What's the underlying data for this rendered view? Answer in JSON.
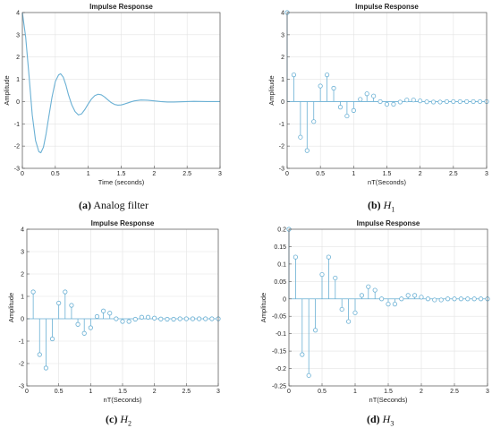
{
  "chart_data": [
    {
      "type": "line",
      "title": "Impulse Response",
      "xlabel": "Time (seconds)",
      "ylabel": "Amplitude",
      "xlim": [
        0,
        3
      ],
      "ylim": [
        -3,
        4
      ],
      "xticks": [
        "0",
        "0.5",
        "1",
        "1.5",
        "2",
        "2.5",
        "3"
      ],
      "yticks": [
        "-3",
        "-2",
        "-1",
        "0",
        "1",
        "2",
        "3",
        "4"
      ],
      "grid": true,
      "color": "#6ab0d4",
      "x": [
        0,
        0.05,
        0.1,
        0.15,
        0.2,
        0.25,
        0.28,
        0.32,
        0.36,
        0.4,
        0.45,
        0.5,
        0.55,
        0.58,
        0.62,
        0.66,
        0.7,
        0.75,
        0.8,
        0.85,
        0.9,
        0.95,
        1.0,
        1.05,
        1.1,
        1.15,
        1.2,
        1.25,
        1.3,
        1.35,
        1.4,
        1.45,
        1.5,
        1.55,
        1.6,
        1.65,
        1.7,
        1.8,
        1.9,
        2.0,
        2.1,
        2.2,
        2.3,
        2.4,
        2.5,
        2.6,
        2.8,
        3.0
      ],
      "y": [
        4.0,
        2.9,
        1.2,
        -0.6,
        -1.75,
        -2.25,
        -2.3,
        -2.05,
        -1.45,
        -0.7,
        0.2,
        0.9,
        1.2,
        1.25,
        1.1,
        0.75,
        0.3,
        -0.15,
        -0.45,
        -0.6,
        -0.55,
        -0.35,
        -0.1,
        0.12,
        0.27,
        0.33,
        0.3,
        0.2,
        0.07,
        -0.05,
        -0.13,
        -0.16,
        -0.15,
        -0.11,
        -0.06,
        -0.01,
        0.03,
        0.07,
        0.06,
        0.03,
        0.0,
        -0.02,
        -0.02,
        -0.01,
        0.0,
        0.01,
        0.0,
        0.0
      ]
    },
    {
      "type": "scatter",
      "title": "Impulse Response",
      "xlabel": "nT(Seconds)",
      "ylabel": "Amplitude",
      "xlim": [
        0,
        3
      ],
      "ylim": [
        -3,
        4
      ],
      "xticks": [
        "0",
        "0.5",
        "1",
        "1.5",
        "2",
        "2.5",
        "3"
      ],
      "yticks": [
        "-3",
        "-2",
        "-1",
        "0",
        "1",
        "2",
        "3",
        "4"
      ],
      "grid": true,
      "marker": "stem",
      "color": "#6ab0d4",
      "x": [
        0,
        0.1,
        0.2,
        0.3,
        0.4,
        0.5,
        0.6,
        0.7,
        0.8,
        0.9,
        1.0,
        1.1,
        1.2,
        1.3,
        1.4,
        1.5,
        1.6,
        1.7,
        1.8,
        1.9,
        2.0,
        2.1,
        2.2,
        2.3,
        2.4,
        2.5,
        2.6,
        2.7,
        2.8,
        2.9,
        3.0
      ],
      "y": [
        4.0,
        1.2,
        -1.6,
        -2.2,
        -0.9,
        0.7,
        1.2,
        0.6,
        -0.25,
        -0.65,
        -0.4,
        0.1,
        0.35,
        0.25,
        0.0,
        -0.12,
        -0.12,
        -0.02,
        0.07,
        0.07,
        0.03,
        -0.01,
        -0.02,
        -0.02,
        0.0,
        0.0,
        0.0,
        0.0,
        0.0,
        0.0,
        0.0
      ]
    },
    {
      "type": "scatter",
      "title": "Impulse Response",
      "xlabel": "nT(Seconds)",
      "ylabel": "Amplitude",
      "xlim": [
        0,
        3
      ],
      "ylim": [
        -3,
        4
      ],
      "xticks": [
        "0",
        "0.5",
        "1",
        "1.5",
        "2",
        "2.5",
        "3"
      ],
      "yticks": [
        "-3",
        "-2",
        "-1",
        "0",
        "1",
        "2",
        "3",
        "4"
      ],
      "grid": true,
      "marker": "stem",
      "color": "#6ab0d4",
      "x": [
        0.1,
        0.2,
        0.3,
        0.4,
        0.5,
        0.6,
        0.7,
        0.8,
        0.9,
        1.0,
        1.1,
        1.2,
        1.3,
        1.4,
        1.5,
        1.6,
        1.7,
        1.8,
        1.9,
        2.0,
        2.1,
        2.2,
        2.3,
        2.4,
        2.5,
        2.6,
        2.7,
        2.8,
        2.9,
        3.0
      ],
      "y": [
        1.2,
        -1.6,
        -2.2,
        -0.9,
        0.7,
        1.2,
        0.6,
        -0.25,
        -0.65,
        -0.4,
        0.1,
        0.35,
        0.25,
        0.0,
        -0.12,
        -0.12,
        -0.02,
        0.07,
        0.07,
        0.03,
        -0.01,
        -0.02,
        -0.02,
        0.0,
        0.0,
        0.0,
        0.0,
        0.0,
        0.0,
        0.0
      ]
    },
    {
      "type": "scatter",
      "title": "Impulse Response",
      "xlabel": "nT(Seconds)",
      "ylabel": "Amplitude",
      "xlim": [
        0,
        3
      ],
      "ylim": [
        -0.25,
        0.2
      ],
      "xticks": [
        "0",
        "0.5",
        "1",
        "1.5",
        "2",
        "2.5",
        "3"
      ],
      "yticks": [
        "-0.25",
        "-0.2",
        "-0.15",
        "-0.1",
        "-0.05",
        "0",
        "0.05",
        "0.1",
        "0.15",
        "0.2"
      ],
      "grid": true,
      "marker": "stem",
      "color": "#6ab0d4",
      "x": [
        0,
        0.1,
        0.2,
        0.3,
        0.4,
        0.5,
        0.6,
        0.7,
        0.8,
        0.9,
        1.0,
        1.1,
        1.2,
        1.3,
        1.4,
        1.5,
        1.6,
        1.7,
        1.8,
        1.9,
        2.0,
        2.1,
        2.2,
        2.3,
        2.4,
        2.5,
        2.6,
        2.7,
        2.8,
        2.9,
        3.0
      ],
      "y": [
        0.2,
        0.12,
        -0.16,
        -0.22,
        -0.09,
        0.07,
        0.12,
        0.06,
        -0.03,
        -0.065,
        -0.04,
        0.01,
        0.035,
        0.025,
        0.0,
        -0.015,
        -0.015,
        0.0,
        0.01,
        0.01,
        0.005,
        0.0,
        -0.003,
        -0.003,
        0.0,
        0.0,
        0.0,
        0.0,
        0.0,
        0.0,
        0.0
      ]
    }
  ],
  "captions": [
    {
      "tag": "(a)",
      "text": "Analog filter"
    },
    {
      "tag": "(b)",
      "sym": "H",
      "sub": "1"
    },
    {
      "tag": "(c)",
      "sym": "H",
      "sub": "2"
    },
    {
      "tag": "(d)",
      "sym": "H",
      "sub": "3"
    }
  ]
}
